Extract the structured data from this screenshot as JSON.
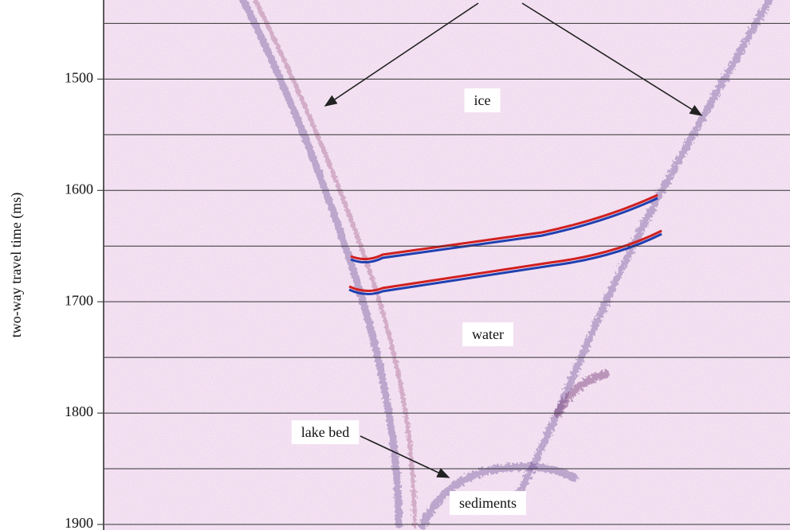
{
  "chart_data": {
    "type": "seismic-section",
    "y_label": "two-way travel time (ms)",
    "ylim": [
      1429,
      1905
    ],
    "yticks": [
      1500,
      1600,
      1700,
      1800,
      1900
    ],
    "minor_grid": [
      1450,
      1550,
      1650,
      1750,
      1850
    ],
    "grid": true,
    "annotations": [
      {
        "text": "ice"
      },
      {
        "text": "water"
      },
      {
        "text": "lake bed"
      },
      {
        "text": "sediments"
      }
    ]
  }
}
